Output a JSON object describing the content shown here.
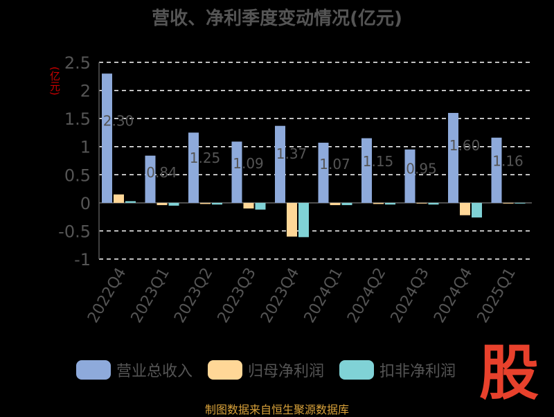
{
  "chart_data": {
    "type": "bar",
    "title": "营收、净利季度变动情况(亿元)",
    "ylabel": "(亿元)",
    "ylim": [
      -1,
      2.5
    ],
    "yticks": [
      -1,
      -0.5,
      0,
      0.5,
      1,
      1.5,
      2,
      2.5
    ],
    "grid": true,
    "legend_position": "bottom",
    "categories": [
      "2022Q4",
      "2023Q1",
      "2023Q2",
      "2023Q3",
      "2023Q4",
      "2024Q1",
      "2024Q2",
      "2024Q3",
      "2024Q4",
      "2025Q1"
    ],
    "series": [
      {
        "name": "营业总收入",
        "color": "#8eaadb",
        "values": [
          2.3,
          0.84,
          1.25,
          1.09,
          1.37,
          1.07,
          1.15,
          0.95,
          1.6,
          1.16
        ]
      },
      {
        "name": "归母净利润",
        "color": "#ffd797",
        "values": [
          0.15,
          -0.04,
          -0.02,
          -0.1,
          -0.6,
          -0.04,
          -0.02,
          -0.01,
          -0.22,
          -0.01
        ]
      },
      {
        "name": "扣非净利润",
        "color": "#80d2d6",
        "values": [
          0.03,
          -0.05,
          -0.03,
          -0.12,
          -0.61,
          -0.04,
          -0.03,
          -0.03,
          -0.26,
          -0.01
        ]
      }
    ],
    "data_labels": [
      "2.30",
      "0.84",
      "1.25",
      "1.09",
      "1.37",
      "1.07",
      "1.15",
      "0.95",
      "1.60",
      "1.16"
    ]
  },
  "watermark": "股",
  "source": "制图数据来自恒生聚源数据库"
}
